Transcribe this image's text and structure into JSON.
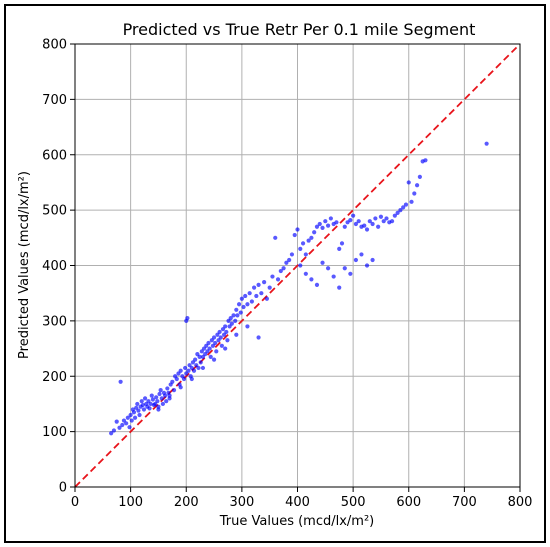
{
  "chart_data": {
    "type": "scatter",
    "title": "Predicted vs True Retr Per 0.1 mile Segment",
    "xlabel": "True Values (mcd/lx/m²)",
    "ylabel": "Predicted Values (mcd/lx/m²)",
    "xlim": [
      0,
      800
    ],
    "ylim": [
      0,
      800
    ],
    "xticks": [
      "0",
      "100",
      "200",
      "300",
      "400",
      "500",
      "600",
      "700",
      "800"
    ],
    "yticks": [
      "0",
      "100",
      "200",
      "300",
      "400",
      "500",
      "600",
      "700",
      "800"
    ],
    "grid": true,
    "point_color": "#0000ff",
    "reference_line": {
      "style": "dashed",
      "color": "#e8141b",
      "x": [
        0,
        800
      ],
      "y": [
        0,
        800
      ]
    },
    "series": [
      {
        "points": [
          [
            65,
            97
          ],
          [
            70,
            102
          ],
          [
            75,
            118
          ],
          [
            80,
            107
          ],
          [
            82,
            190
          ],
          [
            85,
            112
          ],
          [
            88,
            120
          ],
          [
            92,
            115
          ],
          [
            95,
            125
          ],
          [
            98,
            108
          ],
          [
            100,
            130
          ],
          [
            102,
            120
          ],
          [
            104,
            140
          ],
          [
            106,
            135
          ],
          [
            108,
            125
          ],
          [
            110,
            143
          ],
          [
            112,
            150
          ],
          [
            114,
            138
          ],
          [
            116,
            130
          ],
          [
            118,
            145
          ],
          [
            120,
            155
          ],
          [
            122,
            148
          ],
          [
            124,
            140
          ],
          [
            126,
            160
          ],
          [
            128,
            150
          ],
          [
            130,
            145
          ],
          [
            132,
            155
          ],
          [
            134,
            142
          ],
          [
            136,
            150
          ],
          [
            138,
            165
          ],
          [
            140,
            158
          ],
          [
            142,
            148
          ],
          [
            144,
            150
          ],
          [
            146,
            162
          ],
          [
            148,
            155
          ],
          [
            150,
            145
          ],
          [
            152,
            168
          ],
          [
            154,
            175
          ],
          [
            156,
            160
          ],
          [
            158,
            150
          ],
          [
            160,
            170
          ],
          [
            162,
            165
          ],
          [
            164,
            155
          ],
          [
            166,
            178
          ],
          [
            168,
            170
          ],
          [
            170,
            160
          ],
          [
            172,
            185
          ],
          [
            175,
            190
          ],
          [
            178,
            175
          ],
          [
            180,
            200
          ],
          [
            183,
            195
          ],
          [
            186,
            205
          ],
          [
            188,
            185
          ],
          [
            190,
            210
          ],
          [
            193,
            200
          ],
          [
            196,
            195
          ],
          [
            198,
            215
          ],
          [
            200,
            205
          ],
          [
            200,
            300
          ],
          [
            202,
            305
          ],
          [
            204,
            210
          ],
          [
            206,
            220
          ],
          [
            208,
            200
          ],
          [
            210,
            215
          ],
          [
            212,
            225
          ],
          [
            214,
            210
          ],
          [
            216,
            230
          ],
          [
            218,
            220
          ],
          [
            220,
            240
          ],
          [
            222,
            215
          ],
          [
            224,
            235
          ],
          [
            226,
            225
          ],
          [
            228,
            245
          ],
          [
            230,
            235
          ],
          [
            232,
            250
          ],
          [
            234,
            240
          ],
          [
            236,
            255
          ],
          [
            238,
            245
          ],
          [
            240,
            260
          ],
          [
            242,
            250
          ],
          [
            244,
            235
          ],
          [
            246,
            265
          ],
          [
            248,
            255
          ],
          [
            250,
            270
          ],
          [
            252,
            260
          ],
          [
            254,
            245
          ],
          [
            256,
            275
          ],
          [
            258,
            265
          ],
          [
            260,
            280
          ],
          [
            262,
            270
          ],
          [
            264,
            255
          ],
          [
            266,
            285
          ],
          [
            268,
            275
          ],
          [
            270,
            290
          ],
          [
            272,
            280
          ],
          [
            274,
            265
          ],
          [
            276,
            300
          ],
          [
            278,
            290
          ],
          [
            280,
            305
          ],
          [
            282,
            295
          ],
          [
            285,
            310
          ],
          [
            288,
            300
          ],
          [
            290,
            320
          ],
          [
            292,
            310
          ],
          [
            295,
            330
          ],
          [
            298,
            315
          ],
          [
            300,
            340
          ],
          [
            303,
            325
          ],
          [
            306,
            345
          ],
          [
            310,
            330
          ],
          [
            314,
            350
          ],
          [
            318,
            335
          ],
          [
            322,
            360
          ],
          [
            326,
            345
          ],
          [
            330,
            365
          ],
          [
            335,
            350
          ],
          [
            340,
            370
          ],
          [
            345,
            340
          ],
          [
            350,
            360
          ],
          [
            355,
            380
          ],
          [
            360,
            450
          ],
          [
            365,
            375
          ],
          [
            370,
            390
          ],
          [
            375,
            395
          ],
          [
            380,
            405
          ],
          [
            385,
            410
          ],
          [
            390,
            420
          ],
          [
            395,
            455
          ],
          [
            400,
            465
          ],
          [
            405,
            430
          ],
          [
            410,
            440
          ],
          [
            415,
            420
          ],
          [
            420,
            445
          ],
          [
            425,
            450
          ],
          [
            430,
            460
          ],
          [
            435,
            470
          ],
          [
            440,
            475
          ],
          [
            445,
            468
          ],
          [
            450,
            480
          ],
          [
            455,
            472
          ],
          [
            460,
            485
          ],
          [
            465,
            475
          ],
          [
            470,
            478
          ],
          [
            475,
            430
          ],
          [
            480,
            440
          ],
          [
            485,
            470
          ],
          [
            490,
            478
          ],
          [
            495,
            482
          ],
          [
            500,
            490
          ],
          [
            505,
            475
          ],
          [
            510,
            480
          ],
          [
            515,
            470
          ],
          [
            520,
            472
          ],
          [
            525,
            465
          ],
          [
            530,
            480
          ],
          [
            535,
            475
          ],
          [
            540,
            485
          ],
          [
            545,
            470
          ],
          [
            550,
            488
          ],
          [
            555,
            480
          ],
          [
            560,
            485
          ],
          [
            565,
            478
          ],
          [
            570,
            480
          ],
          [
            575,
            490
          ],
          [
            580,
            495
          ],
          [
            585,
            500
          ],
          [
            590,
            505
          ],
          [
            595,
            510
          ],
          [
            600,
            550
          ],
          [
            605,
            515
          ],
          [
            610,
            530
          ],
          [
            615,
            545
          ],
          [
            620,
            560
          ],
          [
            625,
            588
          ],
          [
            630,
            590
          ],
          [
            740,
            620
          ],
          [
            405,
            400
          ],
          [
            415,
            385
          ],
          [
            425,
            375
          ],
          [
            435,
            365
          ],
          [
            445,
            405
          ],
          [
            455,
            395
          ],
          [
            465,
            380
          ],
          [
            475,
            360
          ],
          [
            485,
            395
          ],
          [
            495,
            385
          ],
          [
            505,
            410
          ],
          [
            515,
            420
          ],
          [
            525,
            400
          ],
          [
            535,
            410
          ],
          [
            330,
            270
          ],
          [
            310,
            290
          ],
          [
            290,
            275
          ],
          [
            270,
            250
          ],
          [
            250,
            230
          ],
          [
            230,
            215
          ],
          [
            210,
            195
          ],
          [
            190,
            180
          ],
          [
            170,
            165
          ],
          [
            150,
            140
          ]
        ]
      }
    ]
  }
}
